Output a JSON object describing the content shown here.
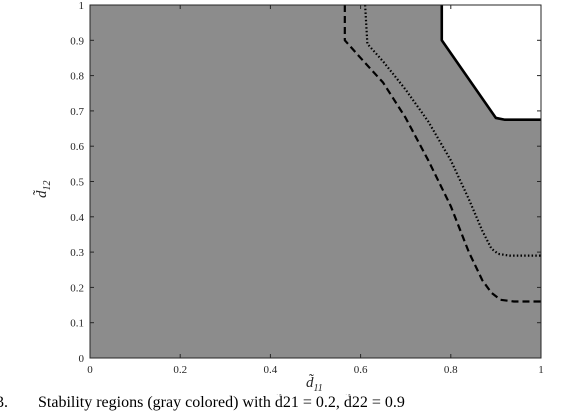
{
  "chart_data": {
    "type": "area",
    "xlabel": "d̃",
    "xlabel_sub": "11",
    "ylabel": "d̃",
    "ylabel_sub": "12",
    "xlim": [
      0,
      1
    ],
    "ylim": [
      0,
      1
    ],
    "x_ticks": [
      0,
      0.2,
      0.4,
      0.6,
      0.8,
      1
    ],
    "x_tick_labels": [
      "0",
      "0.2",
      "0.4",
      "0.6",
      "0.8",
      "1"
    ],
    "y_ticks": [
      0,
      0.1,
      0.2,
      0.3,
      0.4,
      0.5,
      0.6,
      0.7,
      0.8,
      0.9,
      1
    ],
    "y_tick_labels": [
      "0",
      "0.1",
      "0.2",
      "0.3",
      "0.4",
      "0.5",
      "0.6",
      "0.7",
      "0.8",
      "0.9",
      "1"
    ],
    "grid": false,
    "colors": {
      "region": "#8c8c8c",
      "boundary": "#000000",
      "background": "#ffffff"
    },
    "series": [
      {
        "style": "solid",
        "x": [
          0.78,
          0.78,
          0.9,
          0.92,
          1.0
        ],
        "y": [
          1.0,
          0.9,
          0.68,
          0.675,
          0.675
        ]
      },
      {
        "style": "dotted",
        "x": [
          0.61,
          0.615,
          0.65,
          0.7,
          0.75,
          0.8,
          0.84,
          0.87,
          0.89,
          0.905,
          0.93,
          1.0
        ],
        "y": [
          1.0,
          0.89,
          0.84,
          0.76,
          0.67,
          0.56,
          0.45,
          0.36,
          0.31,
          0.295,
          0.29,
          0.29
        ]
      },
      {
        "style": "dashed",
        "x": [
          0.565,
          0.565,
          0.6,
          0.65,
          0.7,
          0.75,
          0.8,
          0.84,
          0.87,
          0.89,
          0.91,
          0.94,
          1.0
        ],
        "y": [
          1.0,
          0.9,
          0.85,
          0.78,
          0.68,
          0.56,
          0.43,
          0.3,
          0.22,
          0.185,
          0.165,
          0.16,
          0.16
        ]
      }
    ]
  },
  "caption": {
    "prefix": "3.",
    "text": "Stability regions (gray colored) with d̃21 = 0.2, d̃22 = 0.9"
  }
}
